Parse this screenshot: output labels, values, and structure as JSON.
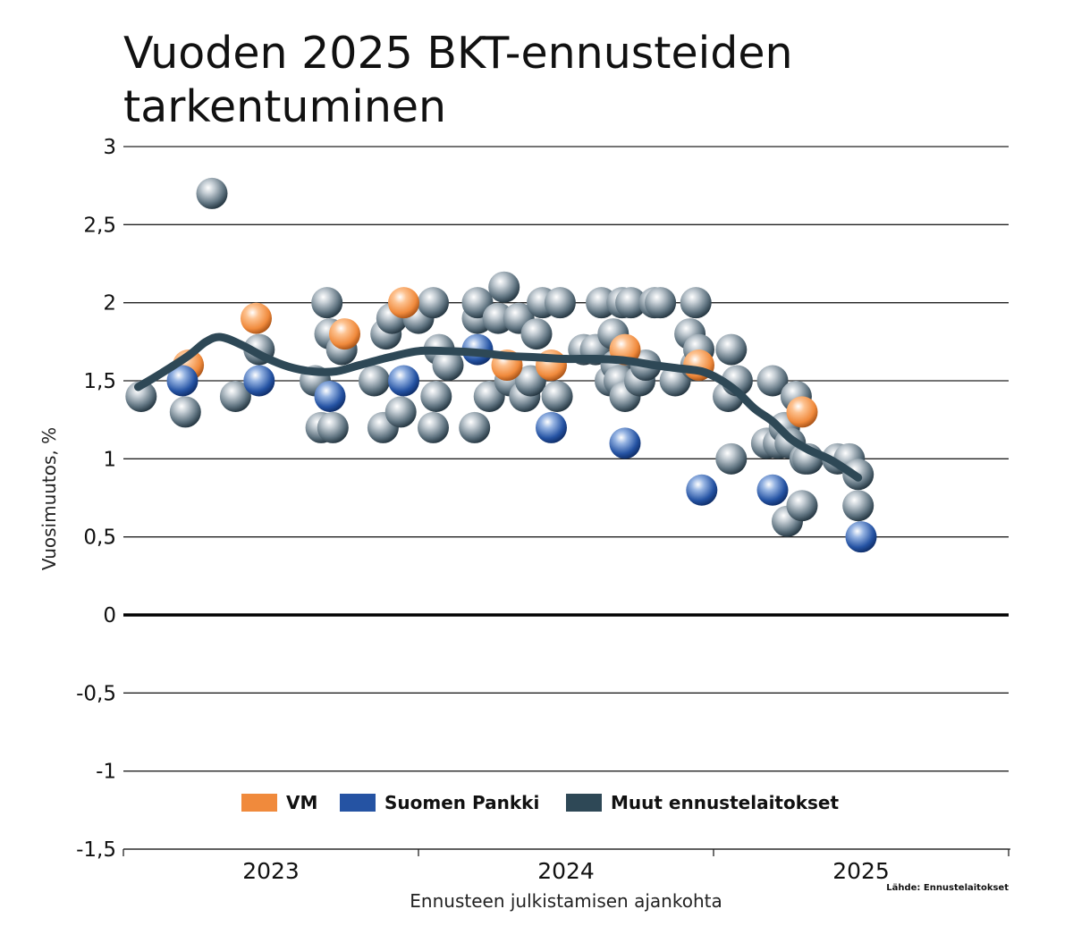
{
  "chart_data": {
    "type": "scatter",
    "title": "Vuoden 2025 BKT-ennusteiden tarkentuminen",
    "xlabel": "Ennusteen julkistamisen ajankohta",
    "ylabel": "Vuosimuutos, %",
    "ylim": [
      -1.5,
      3
    ],
    "xlim": [
      2022.5,
      2025.5
    ],
    "yticks": [
      {
        "value": 3,
        "label": "3"
      },
      {
        "value": 2.5,
        "label": "2,5"
      },
      {
        "value": 2,
        "label": "2"
      },
      {
        "value": 1.5,
        "label": "1,5"
      },
      {
        "value": 1,
        "label": "1"
      },
      {
        "value": 0.5,
        "label": "0,5"
      },
      {
        "value": 0,
        "label": "0"
      },
      {
        "value": -0.5,
        "label": "-0,5"
      },
      {
        "value": -1,
        "label": "-1"
      },
      {
        "value": -1.5,
        "label": "-1,5"
      }
    ],
    "xticks": [
      {
        "value": 2023,
        "label": "2023"
      },
      {
        "value": 2024,
        "label": "2024"
      },
      {
        "value": 2025,
        "label": "2025"
      }
    ],
    "grid": true,
    "legend_position": "bottom-center",
    "source": "Lähde: Ennustelaitokset",
    "series": [
      {
        "name": "VM",
        "color": "#f08a3c",
        "points": [
          [
            2022.72,
            1.6
          ],
          [
            2022.95,
            1.9
          ],
          [
            2023.25,
            1.8
          ],
          [
            2023.45,
            2.0
          ],
          [
            2023.8,
            1.6
          ],
          [
            2023.95,
            1.6
          ],
          [
            2024.2,
            1.7
          ],
          [
            2024.45,
            1.6
          ],
          [
            2024.8,
            1.3
          ]
        ]
      },
      {
        "name": "Suomen Pankki",
        "color": "#2553a3",
        "points": [
          [
            2022.7,
            1.5
          ],
          [
            2022.96,
            1.5
          ],
          [
            2023.2,
            1.4
          ],
          [
            2023.45,
            1.5
          ],
          [
            2023.7,
            1.7
          ],
          [
            2023.95,
            1.2
          ],
          [
            2024.2,
            1.1
          ],
          [
            2024.46,
            0.8
          ],
          [
            2024.7,
            0.8
          ],
          [
            2025.0,
            0.5
          ]
        ]
      },
      {
        "name": "Muut ennustelaitokset",
        "color": "#2e4856",
        "points": [
          [
            2022.56,
            1.4
          ],
          [
            2022.71,
            1.3
          ],
          [
            2022.8,
            2.7
          ],
          [
            2022.88,
            1.4
          ],
          [
            2022.96,
            1.7
          ],
          [
            2023.15,
            1.5
          ],
          [
            2023.17,
            1.2
          ],
          [
            2023.19,
            2.0
          ],
          [
            2023.2,
            1.8
          ],
          [
            2023.21,
            1.2
          ],
          [
            2023.24,
            1.7
          ],
          [
            2023.35,
            1.5
          ],
          [
            2023.38,
            1.2
          ],
          [
            2023.39,
            1.8
          ],
          [
            2023.41,
            1.9
          ],
          [
            2023.44,
            1.3
          ],
          [
            2023.5,
            1.9
          ],
          [
            2023.55,
            2.0
          ],
          [
            2023.55,
            1.2
          ],
          [
            2023.56,
            1.4
          ],
          [
            2023.57,
            1.7
          ],
          [
            2023.6,
            1.6
          ],
          [
            2023.69,
            1.2
          ],
          [
            2023.7,
            1.9
          ],
          [
            2023.7,
            2.0
          ],
          [
            2023.74,
            1.4
          ],
          [
            2023.77,
            1.9
          ],
          [
            2023.79,
            2.1
          ],
          [
            2023.81,
            1.5
          ],
          [
            2023.84,
            1.9
          ],
          [
            2023.86,
            1.4
          ],
          [
            2023.88,
            1.5
          ],
          [
            2023.9,
            1.8
          ],
          [
            2023.92,
            2.0
          ],
          [
            2023.97,
            1.4
          ],
          [
            2023.98,
            2.0
          ],
          [
            2024.06,
            1.7
          ],
          [
            2024.1,
            1.7
          ],
          [
            2024.12,
            2.0
          ],
          [
            2024.15,
            1.5
          ],
          [
            2024.16,
            1.8
          ],
          [
            2024.17,
            1.6
          ],
          [
            2024.18,
            1.5
          ],
          [
            2024.19,
            2.0
          ],
          [
            2024.2,
            1.4
          ],
          [
            2024.22,
            2.0
          ],
          [
            2024.25,
            1.5
          ],
          [
            2024.27,
            1.6
          ],
          [
            2024.3,
            2.0
          ],
          [
            2024.32,
            2.0
          ],
          [
            2024.37,
            1.5
          ],
          [
            2024.42,
            1.8
          ],
          [
            2024.44,
            1.6
          ],
          [
            2024.45,
            1.7
          ],
          [
            2024.44,
            2.0
          ],
          [
            2024.55,
            1.4
          ],
          [
            2024.56,
            1.7
          ],
          [
            2024.56,
            1.0
          ],
          [
            2024.58,
            1.5
          ],
          [
            2024.68,
            1.1
          ],
          [
            2024.7,
            1.5
          ],
          [
            2024.72,
            1.1
          ],
          [
            2024.74,
            1.2
          ],
          [
            2024.75,
            0.6
          ],
          [
            2024.76,
            1.1
          ],
          [
            2024.78,
            1.4
          ],
          [
            2024.8,
            0.7
          ],
          [
            2024.81,
            1.0
          ],
          [
            2024.82,
            1.0
          ],
          [
            2024.92,
            1.0
          ],
          [
            2024.96,
            1.0
          ],
          [
            2024.99,
            0.9
          ],
          [
            2024.99,
            0.7
          ]
        ]
      }
    ],
    "trend": {
      "name": "Muut ennustelaitokset",
      "color": "#2e4856",
      "points": [
        [
          2022.55,
          1.46
        ],
        [
          2022.63,
          1.55
        ],
        [
          2022.72,
          1.66
        ],
        [
          2022.78,
          1.75
        ],
        [
          2022.83,
          1.78
        ],
        [
          2022.9,
          1.73
        ],
        [
          2022.98,
          1.65
        ],
        [
          2023.06,
          1.59
        ],
        [
          2023.14,
          1.56
        ],
        [
          2023.22,
          1.56
        ],
        [
          2023.3,
          1.6
        ],
        [
          2023.4,
          1.65
        ],
        [
          2023.5,
          1.69
        ],
        [
          2023.6,
          1.69
        ],
        [
          2023.7,
          1.68
        ],
        [
          2023.8,
          1.66
        ],
        [
          2023.9,
          1.65
        ],
        [
          2024.0,
          1.64
        ],
        [
          2024.1,
          1.64
        ],
        [
          2024.2,
          1.63
        ],
        [
          2024.3,
          1.6
        ],
        [
          2024.38,
          1.58
        ],
        [
          2024.46,
          1.56
        ],
        [
          2024.52,
          1.51
        ],
        [
          2024.58,
          1.43
        ],
        [
          2024.64,
          1.32
        ],
        [
          2024.7,
          1.24
        ],
        [
          2024.76,
          1.13
        ],
        [
          2024.82,
          1.06
        ],
        [
          2024.9,
          0.99
        ],
        [
          2024.99,
          0.88
        ]
      ]
    }
  }
}
